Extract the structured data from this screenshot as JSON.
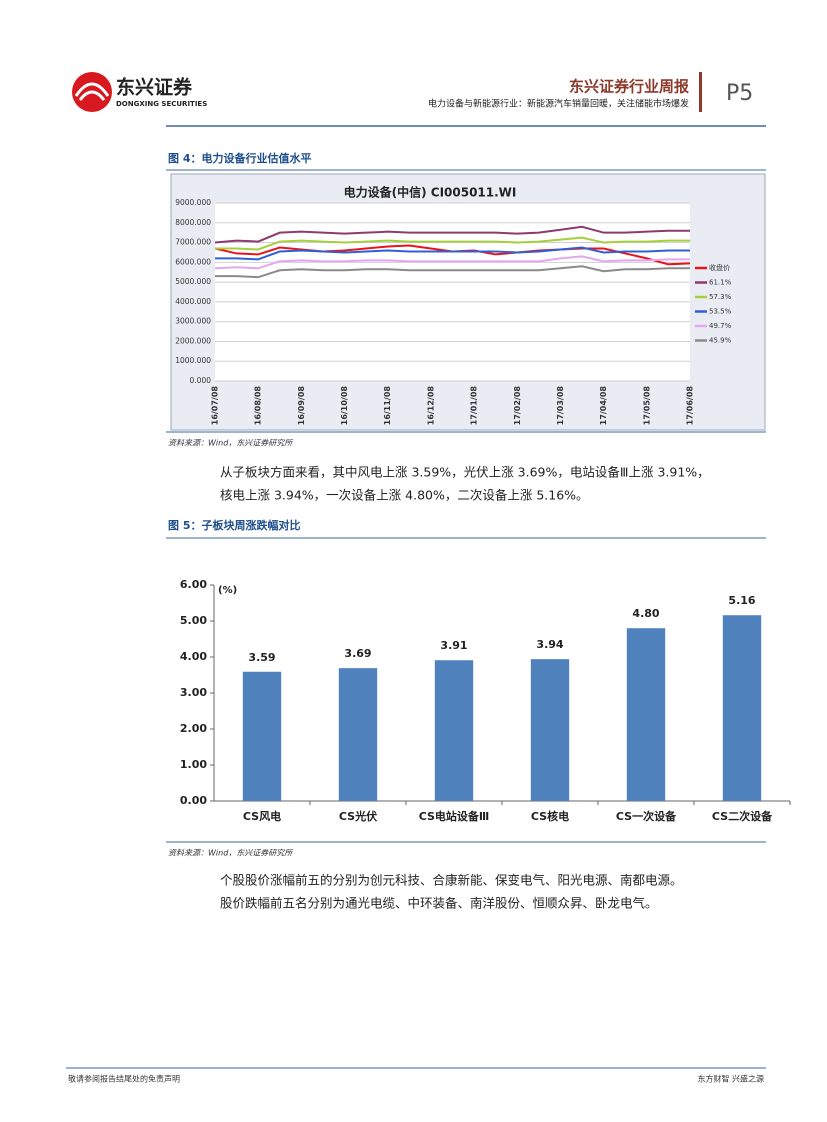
{
  "header": {
    "logo_cn": "东兴证券",
    "logo_en": "DONGXING SECURITIES",
    "title": "东兴证券行业周报",
    "subtitle": "电力设备与新能源行业：新能源汽车销量回暖，关注储能市场爆发",
    "page": "P5"
  },
  "figures": [
    {
      "caption": "图 4：电力设备行业估值水平",
      "source": "资料来源：Wind，东兴证券研究所"
    },
    {
      "caption": "图 5：子板块周涨跌幅对比",
      "source": "资料来源：Wind，东兴证券研究所"
    }
  ],
  "paragraphs": [
    {
      "lines": [
        "从子板块方面来看，其中风电上涨 3.59%，光伏上涨 3.69%，电站设备Ⅲ上涨 3.91%，",
        "核电上涨 3.94%，一次设备上涨 4.80%，二次设备上涨 5.16%。"
      ]
    },
    {
      "lines": [
        "个股股价涨幅前五的分别为创元科技、合康新能、保变电气、阳光电源、南都电源。",
        "股价跌幅前五名分别为通光电缆、中环装备、南洋股份、恒顺众昇、卧龙电气。"
      ]
    }
  ],
  "footer": {
    "left": "敬请参阅报告结尾处的免责声明",
    "right": "东方财智 兴盛之源"
  },
  "chart_data": [
    {
      "type": "line",
      "title": "电力设备(中信) CI005011.WI",
      "categories": [
        "16/07/08",
        null,
        "16/08/08",
        null,
        "16/09/08",
        null,
        "16/10/08",
        null,
        "16/11/08",
        null,
        "16/12/08",
        null,
        "17/01/08",
        null,
        "17/02/08",
        null,
        "17/03/08",
        null,
        "17/04/08",
        null,
        "17/05/08",
        null,
        "17/06/08"
      ],
      "ylim": [
        0,
        9000
      ],
      "yticks": [
        {
          "value": 0,
          "label": "0.000"
        },
        {
          "value": 1000,
          "label": "1000.000"
        },
        {
          "value": 2000,
          "label": "2000.000"
        },
        {
          "value": 3000,
          "label": "3000.000"
        },
        {
          "value": 4000,
          "label": "4000.000"
        },
        {
          "value": 5000,
          "label": "5000.000"
        },
        {
          "value": 6000,
          "label": "6000.000"
        },
        {
          "value": 7000,
          "label": "7000.000"
        },
        {
          "value": 8000,
          "label": "8000.000"
        },
        {
          "value": 9000,
          "label": "9000.000"
        }
      ],
      "grid": true,
      "series": [
        {
          "name": "收盘价",
          "color": "#e8141b",
          "values": [
            6700,
            6450,
            6400,
            6750,
            6650,
            6550,
            6600,
            6700,
            6800,
            6850,
            6700,
            6550,
            6600,
            6400,
            6500,
            6600,
            6650,
            6700,
            6700,
            6450,
            6200,
            5900,
            5950
          ]
        },
        {
          "name": "61.1%",
          "color": "#8e3a6e",
          "values": [
            7000,
            7100,
            7050,
            7500,
            7550,
            7500,
            7450,
            7500,
            7550,
            7500,
            7500,
            7500,
            7500,
            7500,
            7450,
            7500,
            7650,
            7800,
            7500,
            7500,
            7550,
            7600,
            7600
          ]
        },
        {
          "name": "57.3%",
          "color": "#a5cf3c",
          "values": [
            6700,
            6700,
            6650,
            7050,
            7100,
            7050,
            7000,
            7050,
            7100,
            7050,
            7050,
            7050,
            7050,
            7050,
            7000,
            7050,
            7150,
            7250,
            7000,
            7050,
            7050,
            7100,
            7100
          ]
        },
        {
          "name": "53.5%",
          "color": "#2f5fd6",
          "values": [
            6200,
            6200,
            6150,
            6550,
            6600,
            6550,
            6500,
            6550,
            6600,
            6550,
            6550,
            6550,
            6550,
            6550,
            6500,
            6550,
            6650,
            6750,
            6500,
            6550,
            6550,
            6600,
            6600
          ]
        },
        {
          "name": "49.7%",
          "color": "#e4a6f0",
          "values": [
            5700,
            5750,
            5700,
            6050,
            6100,
            6050,
            6050,
            6100,
            6100,
            6050,
            6050,
            6050,
            6050,
            6050,
            6050,
            6050,
            6200,
            6300,
            6050,
            6100,
            6100,
            6150,
            6150
          ]
        },
        {
          "name": "45.9%",
          "color": "#8a8a8a",
          "values": [
            5300,
            5300,
            5250,
            5600,
            5650,
            5600,
            5600,
            5650,
            5650,
            5600,
            5600,
            5600,
            5600,
            5600,
            5600,
            5600,
            5700,
            5800,
            5550,
            5650,
            5650,
            5700,
            5700
          ]
        }
      ]
    },
    {
      "type": "bar",
      "y_unit": "(%)",
      "categories": [
        "CS风电",
        "CS光伏",
        "CS电站设备Ⅲ",
        "CS核电",
        "CS一次设备",
        "CS二次设备"
      ],
      "values": [
        3.59,
        3.69,
        3.91,
        3.94,
        4.8,
        5.16
      ],
      "value_labels": [
        "3.59",
        "3.69",
        "3.91",
        "3.94",
        "4.80",
        "5.16"
      ],
      "color": "#4f81bd",
      "ylim": [
        0,
        6
      ],
      "yticks": [
        {
          "value": 0,
          "label": "0.00"
        },
        {
          "value": 1,
          "label": "1.00"
        },
        {
          "value": 2,
          "label": "2.00"
        },
        {
          "value": 3,
          "label": "3.00"
        },
        {
          "value": 4,
          "label": "4.00"
        },
        {
          "value": 5,
          "label": "5.00"
        },
        {
          "value": 6,
          "label": "6.00"
        }
      ]
    }
  ]
}
